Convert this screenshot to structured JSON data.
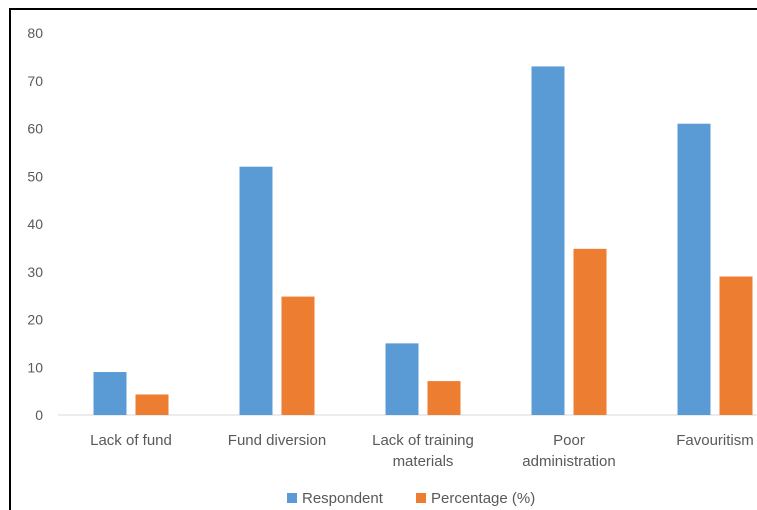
{
  "chart_data": {
    "type": "bar",
    "title": "",
    "xlabel": "",
    "ylabel": "",
    "categories": [
      [
        "Lack of fund"
      ],
      [
        "Fund diversion"
      ],
      [
        "Lack of training",
        "materials"
      ],
      [
        "Poor",
        "administration"
      ],
      [
        "Favouritism"
      ]
    ],
    "series": [
      {
        "name": "Respondent",
        "color": "#5B9BD5",
        "values": [
          9,
          52,
          15,
          73,
          61
        ]
      },
      {
        "name": "Percentage (%)",
        "color": "#ED7D31",
        "values": [
          4.3,
          24.8,
          7.1,
          34.8,
          29.0
        ]
      }
    ],
    "ylim": [
      0,
      80
    ],
    "yticks": [
      0,
      10,
      20,
      30,
      40,
      50,
      60,
      70,
      80
    ],
    "grid": false,
    "legend_position": "bottom"
  }
}
